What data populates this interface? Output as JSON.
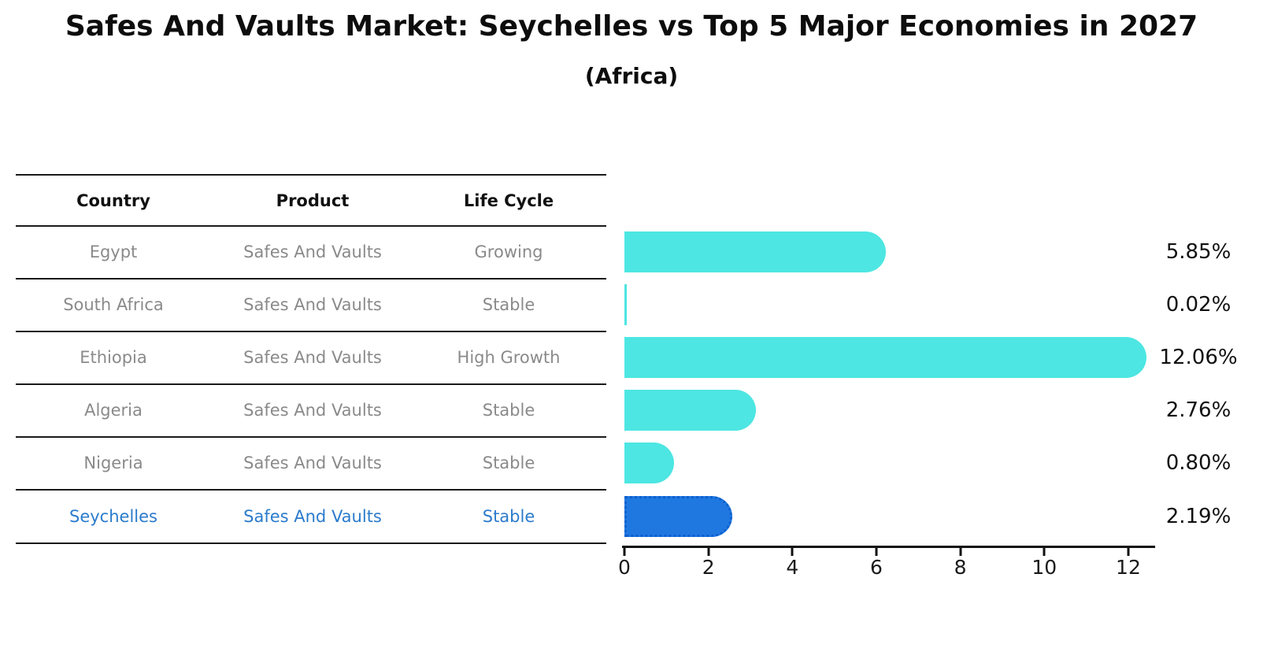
{
  "chart_data": {
    "type": "bar",
    "orientation": "horizontal",
    "title": "Safes And Vaults Market: Seychelles vs Top 5 Major Economies in 2027",
    "subtitle": "(Africa)",
    "categories": [
      "Egypt",
      "South Africa",
      "Ethiopia",
      "Algeria",
      "Nigeria",
      "Seychelles"
    ],
    "values": [
      5.85,
      0.02,
      12.06,
      2.76,
      0.8,
      2.19
    ],
    "value_labels": [
      "5.85%",
      "0.02%",
      "12.06%",
      "2.76%",
      "0.80%",
      "2.19%"
    ],
    "x_ticks": [
      "0",
      "2",
      "4",
      "6",
      "8",
      "10",
      "12"
    ],
    "xlim": [
      0,
      12.7
    ],
    "grid": false,
    "legend": false,
    "bar_color": "#4DE6E2",
    "highlight_index": 5,
    "highlight_color": "#1F78E0",
    "highlight_text_color": "#2B7BCC"
  },
  "table": {
    "columns": [
      "Country",
      "Product",
      "Life Cycle"
    ],
    "rows": [
      {
        "country": "Egypt",
        "product": "Safes And Vaults",
        "life_cycle": "Growing"
      },
      {
        "country": "South Africa",
        "product": "Safes And Vaults",
        "life_cycle": "Stable"
      },
      {
        "country": "Ethiopia",
        "product": "Safes And Vaults",
        "life_cycle": "High Growth"
      },
      {
        "country": "Algeria",
        "product": "Safes And Vaults",
        "life_cycle": "Stable"
      },
      {
        "country": "Nigeria",
        "product": "Safes And Vaults",
        "life_cycle": "Stable"
      },
      {
        "country": "Seychelles",
        "product": "Safes And Vaults",
        "life_cycle": "Stable"
      }
    ]
  }
}
